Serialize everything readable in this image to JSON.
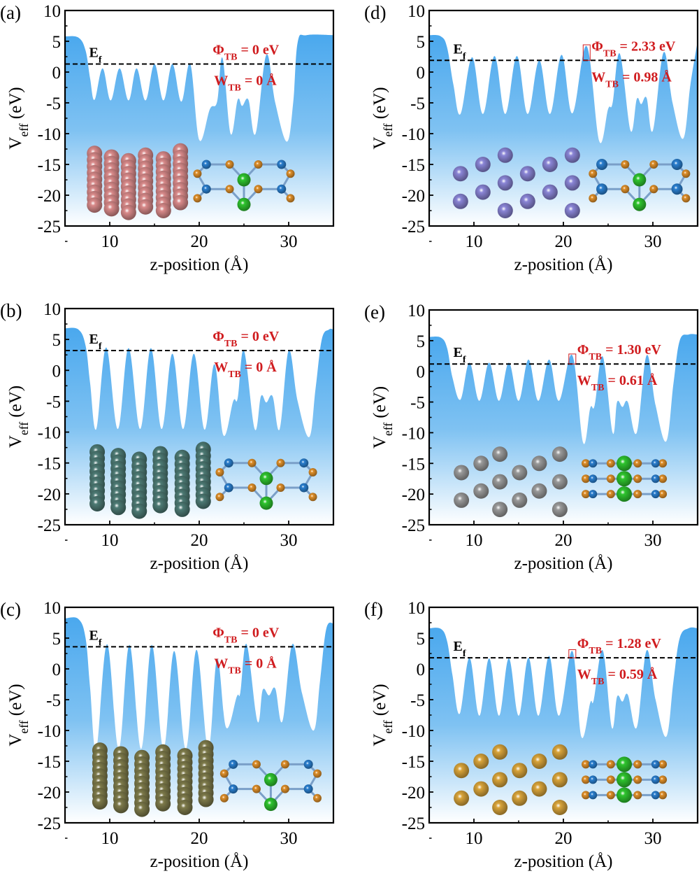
{
  "figure": {
    "colors": {
      "fill_top": "#4aa8ee",
      "fill_bottom": "#ffffff",
      "annotation": "#d01c1f",
      "fermi_line": "#000000",
      "atom_blue": "#2a7fd0",
      "atom_orange": "#e0902a",
      "atom_green": "#2ec42e"
    }
  },
  "chart_data": [
    {
      "id": "a",
      "panel_label": "(a)",
      "type": "area",
      "xlabel": "z-position (Å)",
      "ylabel": "V_eff (eV)",
      "xlim": [
        5,
        35
      ],
      "ylim": [
        -25,
        10
      ],
      "xticks": [
        "10",
        "20",
        "30"
      ],
      "yticks": [
        "10",
        "5",
        "0",
        "-5",
        "-10",
        "-15",
        "-20",
        "-25"
      ],
      "fermi_level": 1.3,
      "fermi_label": "E_f",
      "phi_label": "Φ_TB = 0 eV",
      "w_label": "W_TB = 0 Å",
      "tb_box": false,
      "metal_atom_color": "#d98a8a",
      "metal_layout": "columns",
      "vdw_layout": "side",
      "profile": [
        [
          5,
          5.8
        ],
        [
          6.5,
          5.6
        ],
        [
          7.3,
          3.5
        ],
        [
          7.8,
          -1
        ],
        [
          8.3,
          -4.5
        ],
        [
          9.2,
          0.6
        ],
        [
          10.1,
          -4.6
        ],
        [
          11.1,
          0.6
        ],
        [
          12.1,
          -4.6
        ],
        [
          13.0,
          0.6
        ],
        [
          14.0,
          -4.6
        ],
        [
          15.0,
          1.3
        ],
        [
          16.0,
          -4.6
        ],
        [
          17.0,
          1.3
        ],
        [
          18.0,
          -4.8
        ],
        [
          19.0,
          1.3
        ],
        [
          20.0,
          -11
        ],
        [
          21.2,
          -6
        ],
        [
          22.0,
          -4.8
        ],
        [
          22.6,
          2.3
        ],
        [
          23.5,
          -10
        ],
        [
          24.3,
          -4.5
        ],
        [
          24.8,
          -5.5
        ],
        [
          25.5,
          -4.5
        ],
        [
          26.3,
          -10
        ],
        [
          27.5,
          2.8
        ],
        [
          28.5,
          -5
        ],
        [
          29.8,
          -11.3
        ],
        [
          30.5,
          -5
        ],
        [
          31,
          4.8
        ],
        [
          32,
          6
        ],
        [
          35,
          6
        ]
      ]
    },
    {
      "id": "b",
      "panel_label": "(b)",
      "type": "area",
      "xlabel": "z-position (Å)",
      "ylabel": "V_eff (eV)",
      "xlim": [
        5,
        35
      ],
      "ylim": [
        -25,
        10
      ],
      "xticks": [
        "10",
        "20",
        "30"
      ],
      "yticks": [
        "10",
        "5",
        "0",
        "-5",
        "-10",
        "-15",
        "-20",
        "-25"
      ],
      "fermi_level": 3.2,
      "fermi_label": "E_f",
      "phi_label": "Φ_TB = 0 eV",
      "w_label": "W_TB = 0 Å",
      "tb_box": false,
      "metal_atom_color": "#4d7a74",
      "metal_layout": "columns",
      "vdw_layout": "side",
      "profile": [
        [
          5,
          6.8
        ],
        [
          6.5,
          6.6
        ],
        [
          7.3,
          4
        ],
        [
          7.8,
          -2
        ],
        [
          8.5,
          -9.5
        ],
        [
          9.6,
          3.7
        ],
        [
          10.9,
          -9.5
        ],
        [
          12.1,
          3.6
        ],
        [
          13.4,
          -9.5
        ],
        [
          14.6,
          3.6
        ],
        [
          15.8,
          -9.5
        ],
        [
          17.0,
          2.7
        ],
        [
          18.2,
          -9.5
        ],
        [
          19.4,
          2.7
        ],
        [
          20.6,
          -9.6
        ],
        [
          21.7,
          1.0
        ],
        [
          22.7,
          -10.5
        ],
        [
          23.8,
          -5
        ],
        [
          24.3,
          -4.5
        ],
        [
          25.0,
          3.2
        ],
        [
          26.2,
          -9.5
        ],
        [
          26.9,
          -4.2
        ],
        [
          27.5,
          -5.2
        ],
        [
          28.2,
          -4.2
        ],
        [
          29.0,
          -9.5
        ],
        [
          30.0,
          3.2
        ],
        [
          31.0,
          -5
        ],
        [
          32.3,
          -10.8
        ],
        [
          33,
          -3
        ],
        [
          33.7,
          5
        ],
        [
          34.5,
          6.6
        ],
        [
          35,
          6.6
        ]
      ]
    },
    {
      "id": "c",
      "panel_label": "(c)",
      "type": "area",
      "xlabel": "z-position (Å)",
      "ylabel": "V_eff (eV)",
      "xlim": [
        5,
        35
      ],
      "ylim": [
        -25,
        10
      ],
      "xticks": [
        "10",
        "20",
        "30"
      ],
      "yticks": [
        "10",
        "5",
        "0",
        "-5",
        "-10",
        "-15",
        "-20",
        "-25"
      ],
      "fermi_level": 3.6,
      "fermi_label": "E_f",
      "phi_label": "Φ_TB = 0 eV",
      "w_label": "W_TB = 0 Å",
      "tb_box": false,
      "metal_atom_color": "#7d7a4a",
      "metal_layout": "columns",
      "vdw_layout": "side",
      "profile": [
        [
          5,
          8.2
        ],
        [
          6.5,
          8.1
        ],
        [
          7.3,
          5
        ],
        [
          7.8,
          -3
        ],
        [
          8.5,
          -13
        ],
        [
          9.7,
          4.0
        ],
        [
          11.0,
          -13
        ],
        [
          12.2,
          3.9
        ],
        [
          13.5,
          -13
        ],
        [
          14.7,
          3.9
        ],
        [
          16.0,
          -13
        ],
        [
          17.2,
          2.9
        ],
        [
          18.5,
          -13
        ],
        [
          19.7,
          3.1
        ],
        [
          21.0,
          -13
        ],
        [
          22.0,
          1.6
        ],
        [
          23.0,
          -9.5
        ],
        [
          24.2,
          -4.5
        ],
        [
          24.6,
          -3.8
        ],
        [
          25.3,
          4.0
        ],
        [
          26.5,
          -8.5
        ],
        [
          27.1,
          -3.4
        ],
        [
          27.8,
          -4.3
        ],
        [
          28.5,
          -3.2
        ],
        [
          29.3,
          -8.5
        ],
        [
          30.4,
          4.0
        ],
        [
          31.5,
          -4
        ],
        [
          32.8,
          -10
        ],
        [
          33.5,
          -2
        ],
        [
          34.2,
          6.5
        ],
        [
          35,
          7.4
        ]
      ]
    },
    {
      "id": "d",
      "panel_label": "(d)",
      "type": "area",
      "xlabel": "z-position (Å)",
      "ylabel": "V_eff (eV)",
      "xlim": [
        5,
        35
      ],
      "ylim": [
        -25,
        10
      ],
      "xticks": [
        "10",
        "20",
        "30"
      ],
      "yticks": [
        "10",
        "5",
        "0",
        "-5",
        "-10",
        "-15",
        "-20",
        "-25"
      ],
      "fermi_level": 1.9,
      "fermi_label": "E_f",
      "phi_label": "Φ_TB = 2.33 eV",
      "w_label": "W_TB = 0.98 Å",
      "tb_box": true,
      "tb_peak_x": 22.6,
      "metal_atom_color": "#8a85d6",
      "metal_layout": "hex",
      "vdw_layout": "side",
      "profile": [
        [
          5,
          6
        ],
        [
          6.3,
          5.8
        ],
        [
          7,
          4
        ],
        [
          7.7,
          -2
        ],
        [
          8.5,
          -6.8
        ],
        [
          9.8,
          2.4
        ],
        [
          11.0,
          -6.8
        ],
        [
          12.3,
          2.6
        ],
        [
          13.5,
          -6.8
        ],
        [
          14.8,
          2.6
        ],
        [
          16.0,
          -6.8
        ],
        [
          17.3,
          1.9
        ],
        [
          18.5,
          -6.8
        ],
        [
          19.8,
          2.8
        ],
        [
          21.0,
          -6.7
        ],
        [
          22.6,
          4.2
        ],
        [
          24.0,
          -11.2
        ],
        [
          25.0,
          -6
        ],
        [
          25.5,
          -5
        ],
        [
          26.3,
          3.0
        ],
        [
          27.5,
          -9.5
        ],
        [
          28.2,
          -4.4
        ],
        [
          28.7,
          -5.2
        ],
        [
          29.3,
          -4.2
        ],
        [
          30.0,
          -9.5
        ],
        [
          31.2,
          3.2
        ],
        [
          32.2,
          -5
        ],
        [
          33.4,
          -10.8
        ],
        [
          34.2,
          -2
        ],
        [
          35,
          5
        ]
      ]
    },
    {
      "id": "e",
      "panel_label": "(e)",
      "type": "area",
      "xlabel": "z-position (Å)",
      "ylabel": "V_eff (eV)",
      "xlim": [
        5,
        35
      ],
      "ylim": [
        -25,
        10
      ],
      "xticks": [
        "10",
        "20",
        "30"
      ],
      "yticks": [
        "10",
        "5",
        "0",
        "-5",
        "-10",
        "-15",
        "-20",
        "-25"
      ],
      "fermi_level": 1.2,
      "fermi_label": "E_f",
      "phi_label": "Φ_TB = 1.30 eV",
      "w_label": "W_TB = 0.61 Å",
      "tb_box": true,
      "tb_peak_x": 21.0,
      "metal_atom_color": "#9a9a9a",
      "metal_layout": "hex",
      "vdw_layout": "stack",
      "profile": [
        [
          5,
          5.6
        ],
        [
          6.3,
          5.5
        ],
        [
          7,
          3.8
        ],
        [
          7.6,
          -1
        ],
        [
          8.5,
          -4.6
        ],
        [
          9.5,
          1.4
        ],
        [
          10.6,
          -4.8
        ],
        [
          11.7,
          1.4
        ],
        [
          12.8,
          -4.8
        ],
        [
          13.9,
          1.4
        ],
        [
          15.0,
          -4.8
        ],
        [
          16.1,
          1.9
        ],
        [
          17.2,
          -4.8
        ],
        [
          18.4,
          1.9
        ],
        [
          19.5,
          -4.8
        ],
        [
          21.0,
          2.6
        ],
        [
          22.2,
          -11.6
        ],
        [
          23.0,
          -6
        ],
        [
          23.5,
          -5.5
        ],
        [
          24.4,
          2.4
        ],
        [
          25.5,
          -10
        ],
        [
          26.0,
          -5
        ],
        [
          26.6,
          -5.8
        ],
        [
          27.2,
          -5
        ],
        [
          28.2,
          -10
        ],
        [
          29.3,
          2.6
        ],
        [
          30.3,
          -5.5
        ],
        [
          31.5,
          -11.4
        ],
        [
          32.3,
          -2
        ],
        [
          33,
          5
        ],
        [
          34,
          6
        ],
        [
          35,
          6
        ]
      ]
    },
    {
      "id": "f",
      "panel_label": "(f)",
      "type": "area",
      "xlabel": "z-position (Å)",
      "ylabel": "V_eff (eV)",
      "xlim": [
        5,
        35
      ],
      "ylim": [
        -25,
        10
      ],
      "xticks": [
        "10",
        "20",
        "30"
      ],
      "yticks": [
        "10",
        "5",
        "0",
        "-5",
        "-10",
        "-15",
        "-20",
        "-25"
      ],
      "fermi_level": 1.8,
      "fermi_label": "E_f",
      "phi_label": "Φ_TB = 1.28 eV",
      "w_label": "W_TB = 0.59 Å",
      "tb_box": true,
      "tb_peak_x": 21.0,
      "metal_atom_color": "#d9a43a",
      "metal_layout": "hex",
      "vdw_layout": "stack",
      "profile": [
        [
          5,
          6.6
        ],
        [
          6.3,
          6.5
        ],
        [
          7,
          4.5
        ],
        [
          7.6,
          -1
        ],
        [
          8.4,
          -7.3
        ],
        [
          9.5,
          1.8
        ],
        [
          10.6,
          -7.6
        ],
        [
          11.7,
          1.7
        ],
        [
          12.8,
          -7.6
        ],
        [
          13.9,
          1.7
        ],
        [
          15.0,
          -7.6
        ],
        [
          16.1,
          1.8
        ],
        [
          17.2,
          -7.6
        ],
        [
          18.4,
          2.1
        ],
        [
          19.5,
          -7.6
        ],
        [
          21.0,
          2.9
        ],
        [
          22.0,
          -11
        ],
        [
          23.0,
          -5.5
        ],
        [
          23.4,
          -5
        ],
        [
          24.4,
          3.0
        ],
        [
          25.4,
          -9.5
        ],
        [
          26.0,
          -4.5
        ],
        [
          26.6,
          -5.3
        ],
        [
          27.2,
          -4.2
        ],
        [
          28.2,
          -9.5
        ],
        [
          29.3,
          3.0
        ],
        [
          30.3,
          -5
        ],
        [
          31.5,
          -11
        ],
        [
          32.3,
          -2
        ],
        [
          33,
          5
        ],
        [
          34,
          6.6
        ],
        [
          35,
          6.6
        ]
      ]
    }
  ]
}
